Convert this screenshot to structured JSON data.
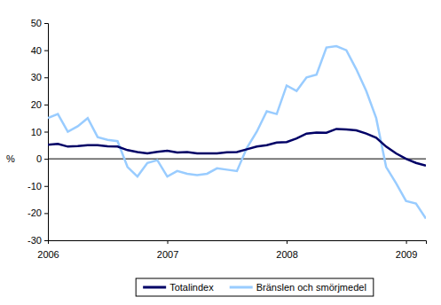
{
  "chart_data": {
    "type": "line",
    "y_label": "%",
    "categories": [
      "2006",
      null,
      null,
      null,
      null,
      null,
      null,
      null,
      null,
      null,
      null,
      null,
      "2007",
      null,
      null,
      null,
      null,
      null,
      null,
      null,
      null,
      null,
      null,
      null,
      "2008",
      null,
      null,
      null,
      null,
      null,
      null,
      null,
      null,
      null,
      null,
      null,
      "2009",
      null,
      null
    ],
    "series": [
      {
        "name": "Totalindex",
        "color": "#000066",
        "values": [
          5.2,
          5.5,
          4.5,
          4.7,
          5.0,
          5.0,
          4.6,
          4.5,
          3.2,
          2.5,
          2.0,
          2.6,
          3.0,
          2.3,
          2.5,
          2.0,
          2.0,
          2.0,
          2.4,
          2.5,
          3.5,
          4.5,
          5.0,
          6.0,
          6.2,
          7.5,
          9.3,
          9.7,
          9.6,
          11.0,
          10.8,
          10.5,
          9.3,
          7.8,
          4.5,
          2.0,
          0.0,
          -1.5,
          -2.5
        ]
      },
      {
        "name": "Bränslen och smörjmedel",
        "color": "#99ccff",
        "values": [
          15,
          16.5,
          10,
          12,
          15,
          8,
          7,
          6.5,
          -3,
          -6.5,
          -1.5,
          -0.5,
          -6.5,
          -4.5,
          -5.5,
          -6,
          -5.5,
          -3.5,
          -4,
          -4.5,
          4,
          10,
          17.5,
          16.5,
          27,
          25,
          30,
          31,
          41,
          41.5,
          40,
          33,
          25,
          15,
          -3,
          -9,
          -15.5,
          -16.5,
          -22
        ]
      }
    ],
    "ylim": [
      -30,
      50
    ],
    "yticks": [
      -30,
      -20,
      -10,
      0,
      10,
      20,
      30,
      40,
      50
    ],
    "legend": "bottom"
  }
}
